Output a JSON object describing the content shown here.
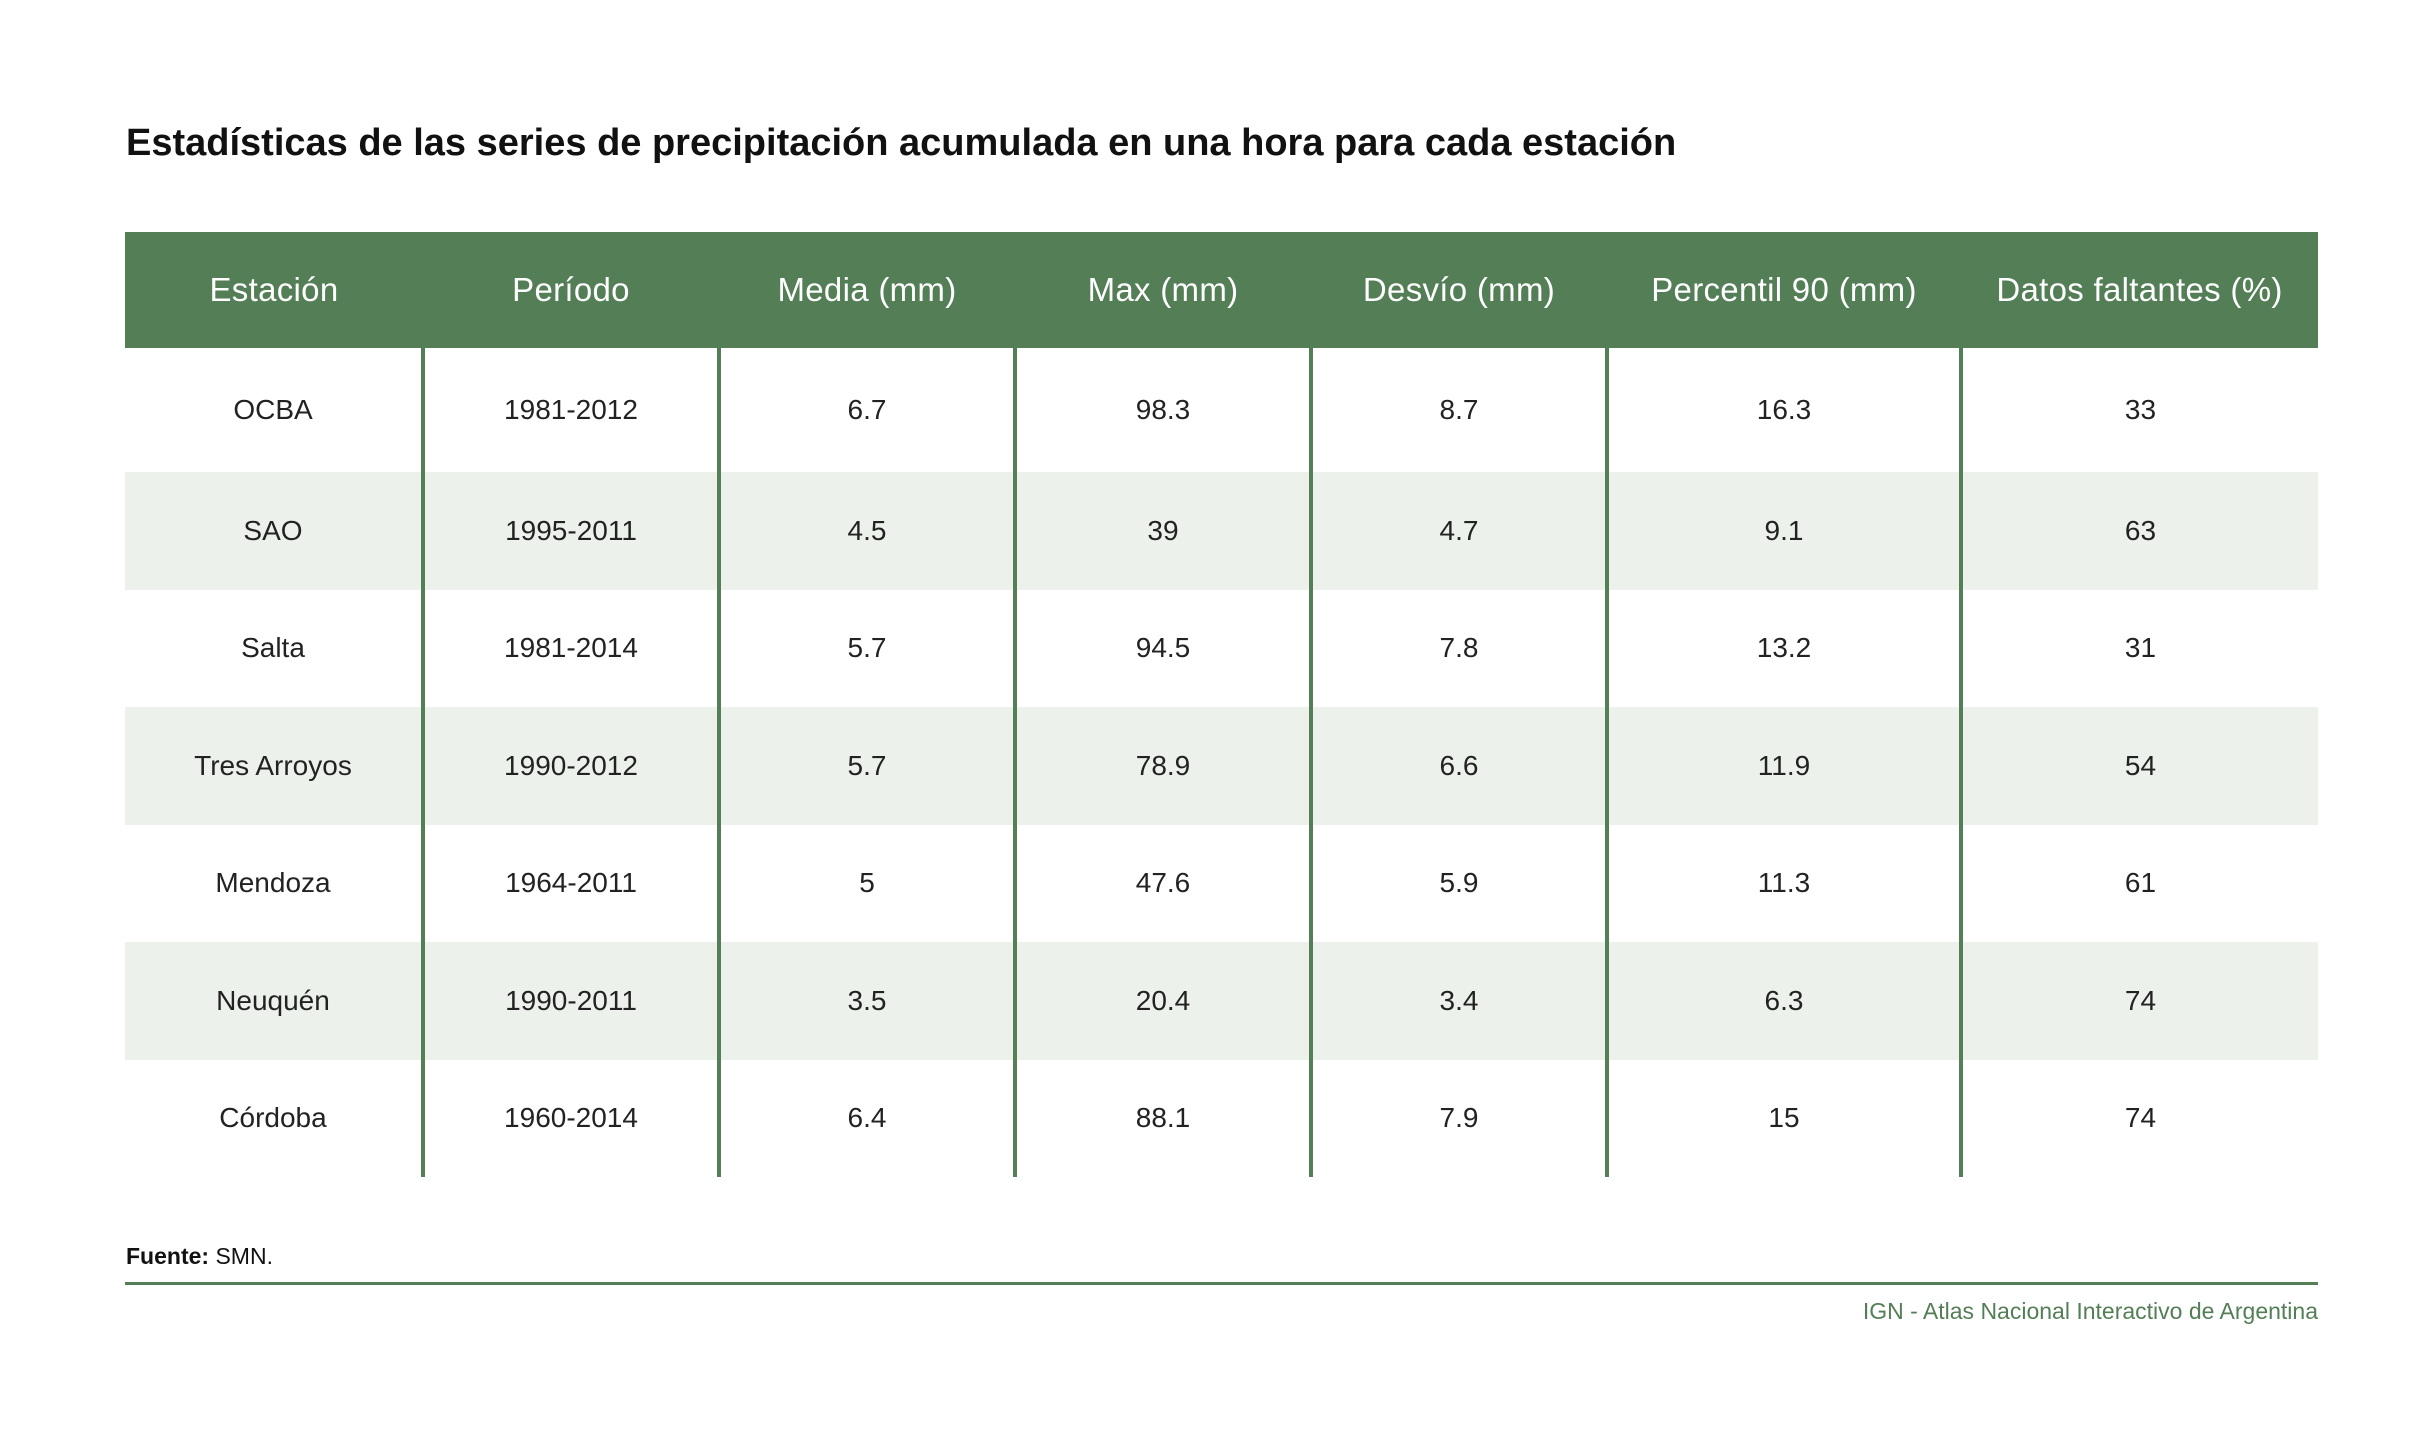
{
  "title": "Estadísticas de las series de precipitación acumulada en una hora para cada estación",
  "table": {
    "headers": [
      "Estación",
      "Período",
      "Media (mm)",
      "Max (mm)",
      "Desvío (mm)",
      "Percentil 90 (mm)",
      "Datos faltantes (%)"
    ],
    "rows": [
      [
        "OCBA",
        "1981-2012",
        "6.7",
        "98.3",
        "8.7",
        "16.3",
        "33"
      ],
      [
        "SAO",
        "1995-2011",
        "4.5",
        "39",
        "4.7",
        "9.1",
        "63"
      ],
      [
        "Salta",
        "1981-2014",
        "5.7",
        "94.5",
        "7.8",
        "13.2",
        "31"
      ],
      [
        "Tres Arroyos",
        "1990-2012",
        "5.7",
        "78.9",
        "6.6",
        "11.9",
        "54"
      ],
      [
        "Mendoza",
        "1964-2011",
        "5",
        "47.6",
        "5.9",
        "11.3",
        "61"
      ],
      [
        "Neuquén",
        "1990-2011",
        "3.5",
        "20.4",
        "3.4",
        "6.3",
        "74"
      ],
      [
        "Córdoba",
        "1960-2014",
        "6.4",
        "88.1",
        "7.9",
        "15",
        "74"
      ]
    ]
  },
  "footer": {
    "source_label": "Fuente:",
    "source_value": " SMN.",
    "credit": "IGN - Atlas Nacional Interactivo de Argentina"
  },
  "colors": {
    "accent": "#537e56",
    "stripe": "#edf1ec"
  }
}
